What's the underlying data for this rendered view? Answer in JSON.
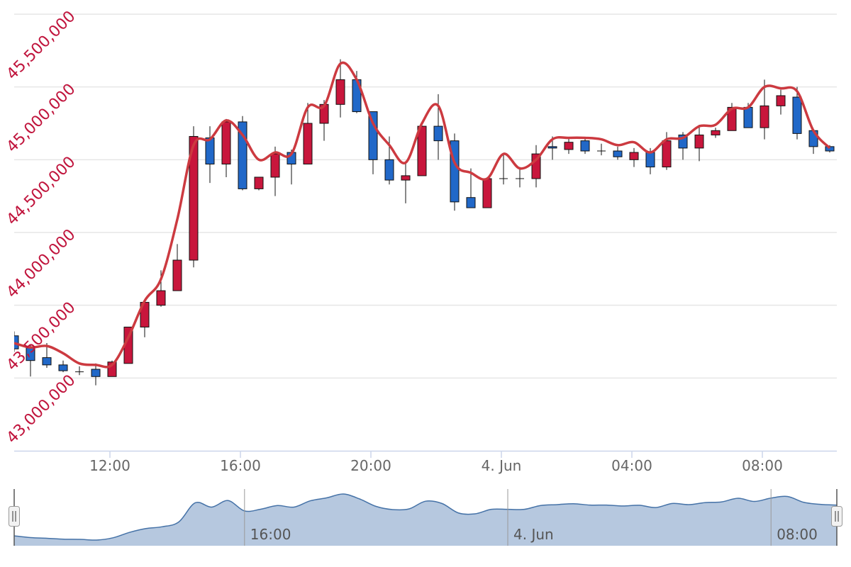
{
  "chart_data": {
    "type": "candlestick",
    "categories": [
      "09:00",
      "09:30",
      "10:00",
      "10:30",
      "11:00",
      "11:30",
      "12:00",
      "12:30",
      "13:00",
      "13:30",
      "14:00",
      "14:30",
      "15:00",
      "15:30",
      "16:00",
      "16:30",
      "17:00",
      "17:30",
      "18:00",
      "18:30",
      "19:00",
      "19:30",
      "20:00",
      "20:30",
      "21:00",
      "21:30",
      "22:00",
      "22:30",
      "23:00",
      "23:30",
      "00:00",
      "00:30",
      "01:00",
      "01:30",
      "02:00",
      "02:30",
      "03:00",
      "03:30",
      "04:00",
      "04:30",
      "05:00",
      "05:30",
      "06:00",
      "06:30",
      "07:00",
      "07:30",
      "08:00",
      "08:30",
      "09:00",
      "09:30",
      "10:00"
    ],
    "series": [
      {
        "type": "candlestick",
        "up_color": "#c8163c",
        "down_color": "#2168c8",
        "open": [
          43290000,
          43210000,
          43140000,
          43090000,
          43045000,
          43060000,
          43010000,
          43100000,
          43350000,
          43500000,
          43600000,
          43810000,
          44650000,
          44470000,
          44760000,
          44300000,
          44380000,
          44550000,
          44470000,
          44750000,
          44880000,
          45050000,
          44830000,
          44500000,
          44360000,
          44390000,
          44730000,
          44630000,
          44240000,
          44170000,
          44370000,
          44370000,
          44370000,
          44590000,
          44570000,
          44630000,
          44560000,
          44560000,
          44500000,
          44550000,
          44450000,
          44670000,
          44580000,
          44670000,
          44700000,
          44860000,
          44720000,
          44870000,
          44930000,
          44700000,
          44590000
        ],
        "high": [
          43320000,
          43230000,
          43240000,
          43120000,
          43080000,
          43100000,
          43120000,
          43350000,
          43520000,
          43740000,
          43920000,
          44730000,
          44730000,
          44780000,
          44800000,
          44380000,
          44590000,
          44570000,
          44890000,
          44910000,
          45190000,
          45110000,
          44830000,
          44660000,
          44480000,
          44760000,
          44950000,
          44680000,
          44440000,
          44380000,
          44540000,
          44450000,
          44600000,
          44660000,
          44650000,
          44650000,
          44610000,
          44590000,
          44580000,
          44580000,
          44690000,
          44690000,
          44740000,
          44720000,
          44890000,
          44890000,
          45050000,
          44980000,
          45000000,
          44700000,
          44600000
        ],
        "low": [
          43180000,
          43010000,
          43070000,
          43040000,
          43020000,
          42950000,
          43010000,
          43100000,
          43280000,
          43490000,
          43600000,
          43760000,
          44340000,
          44380000,
          44290000,
          44290000,
          44250000,
          44330000,
          44470000,
          44630000,
          44790000,
          44820000,
          44400000,
          44330000,
          44200000,
          44390000,
          44500000,
          44150000,
          44170000,
          44170000,
          44330000,
          44310000,
          44310000,
          44500000,
          44540000,
          44540000,
          44530000,
          44500000,
          44450000,
          44400000,
          44430000,
          44500000,
          44490000,
          44650000,
          44700000,
          44720000,
          44640000,
          44810000,
          44640000,
          44540000,
          44550000
        ],
        "close": [
          43200000,
          43120000,
          43090000,
          43050000,
          43040000,
          43010000,
          43110000,
          43350000,
          43520000,
          43600000,
          43810000,
          44660000,
          44470000,
          44760000,
          44300000,
          44380000,
          44540000,
          44470000,
          44750000,
          44880000,
          45050000,
          44830000,
          44500000,
          44360000,
          44390000,
          44730000,
          44630000,
          44210000,
          44170000,
          44370000,
          44370000,
          44370000,
          44540000,
          44580000,
          44620000,
          44560000,
          44560000,
          44520000,
          44550000,
          44450000,
          44630000,
          44580000,
          44670000,
          44700000,
          44860000,
          44720000,
          44870000,
          44940000,
          44680000,
          44590000,
          44560000
        ]
      },
      {
        "type": "spline",
        "color": "#cc3a40",
        "values": [
          43240000,
          43210000,
          43220000,
          43170000,
          43100000,
          43090000,
          43090000,
          43280000,
          43530000,
          43680000,
          44090000,
          44600000,
          44640000,
          44770000,
          44670000,
          44500000,
          44550000,
          44540000,
          44860000,
          44870000,
          45160000,
          45050000,
          44750000,
          44600000,
          44480000,
          44750000,
          44870000,
          44480000,
          44410000,
          44370000,
          44540000,
          44440000,
          44500000,
          44640000,
          44650000,
          44650000,
          44640000,
          44600000,
          44620000,
          44550000,
          44640000,
          44650000,
          44730000,
          44740000,
          44850000,
          44860000,
          45000000,
          44990000,
          44970000,
          44700000,
          44580000
        ]
      }
    ],
    "ylim": [
      42500000,
      45500000
    ],
    "yticks": [
      {
        "value": 43000000,
        "label": "43,000,000"
      },
      {
        "value": 43500000,
        "label": "43,500,000"
      },
      {
        "value": 44000000,
        "label": "44,000,000"
      },
      {
        "value": 44500000,
        "label": "44,500,000"
      },
      {
        "value": 45000000,
        "label": "45,000,000"
      },
      {
        "value": 45500000,
        "label": "45,500,000"
      }
    ],
    "xticks": [
      "12:00",
      "16:00",
      "20:00",
      {
        "value": "00:00",
        "label": "4. Jun"
      },
      "04:00",
      "08:00"
    ],
    "grid": true,
    "navigator": {
      "color": "#4572a7",
      "fill": "#b6c8df",
      "xticks": [
        "16:00",
        {
          "value": "00:00",
          "label": "4. Jun"
        },
        "08:00"
      ]
    }
  }
}
